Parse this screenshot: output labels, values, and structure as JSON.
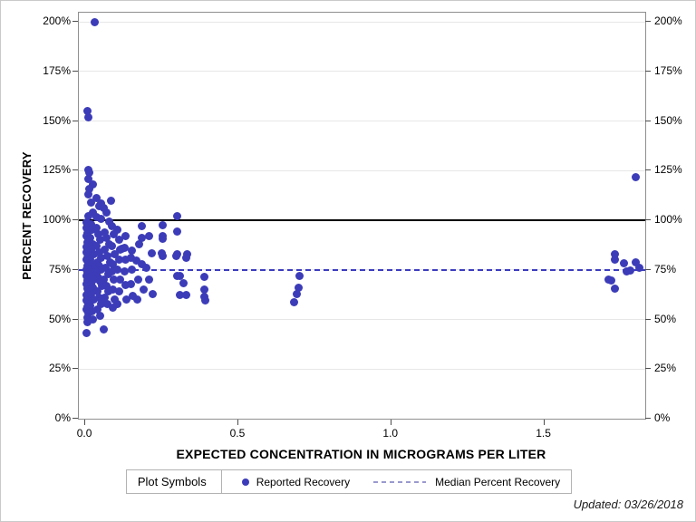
{
  "figure": {
    "updated_note": "Updated: 03/26/2018"
  },
  "colors": {
    "point": "#3c3cb9",
    "median_line": "#3c3cc0",
    "reference_line_100": "#000000",
    "gridline": "#e7e7e7",
    "plot_frame": "#8f8f8f",
    "legend_dash": "#9a9ace"
  },
  "chart_data": {
    "type": "scatter",
    "title": "",
    "xlabel": "EXPECTED CONCENTRATION IN MICROGRAMS PER LITER",
    "ylabel": "PERCENT RECOVERY",
    "xlim": [
      -0.021,
      1.83
    ],
    "ylim": [
      0,
      204.6
    ],
    "x_ticks": [
      0.0,
      0.5,
      1.0,
      1.5
    ],
    "x_tick_labels": [
      "0.0",
      "0.5",
      "1.0",
      "1.5"
    ],
    "y_ticks": [
      0,
      25,
      50,
      75,
      100,
      125,
      150,
      175,
      200
    ],
    "y_tick_labels": [
      "0%",
      "25%",
      "50%",
      "75%",
      "100%",
      "125%",
      "150%",
      "175%",
      "200%"
    ],
    "grid": "horizontal",
    "legend_position": "bottom",
    "reference_lines": [
      {
        "name": "100 percent recovery",
        "value": 100,
        "style": "solid",
        "color": "#000000"
      },
      {
        "name": "Median Percent Recovery",
        "value": 75,
        "style": "dashed",
        "color": "#3c3cc0"
      }
    ],
    "legend": {
      "title": "Plot Symbols",
      "entries": [
        {
          "label": "Reported Recovery",
          "marker": "dot",
          "color": "#3c3cb9"
        },
        {
          "label": "Median Percent Recovery",
          "marker": "dashed-line",
          "color": "#9a9ace"
        }
      ]
    },
    "series": [
      {
        "name": "Reported Recovery",
        "marker_color": "#3c3cb9",
        "points": [
          [
            0.03,
            200
          ],
          [
            0.006,
            155
          ],
          [
            0.009,
            152
          ],
          [
            0.009,
            125.5
          ],
          [
            0.012,
            124
          ],
          [
            0.009,
            121
          ],
          [
            0.024,
            118
          ],
          [
            0.012,
            116
          ],
          [
            0.009,
            113
          ],
          [
            0.038,
            111
          ],
          [
            0.083,
            110
          ],
          [
            0.018,
            109
          ],
          [
            0.053,
            108.5
          ],
          [
            0.047,
            107
          ],
          [
            0.059,
            106
          ],
          [
            0.024,
            104
          ],
          [
            0.068,
            104
          ],
          [
            0.009,
            102
          ],
          [
            0.038,
            101.5
          ],
          [
            0.053,
            100.5
          ],
          [
            0.077,
            99.5
          ],
          [
            0.004,
            99
          ],
          [
            0.008,
            97.5
          ],
          [
            0.005,
            96
          ],
          [
            0.01,
            95
          ],
          [
            0.006,
            93.5
          ],
          [
            0.004,
            92
          ],
          [
            0.009,
            90.5
          ],
          [
            0.006,
            89
          ],
          [
            0.011,
            88
          ],
          [
            0.004,
            86.5
          ],
          [
            0.008,
            85
          ],
          [
            0.005,
            84
          ],
          [
            0.01,
            82.5
          ],
          [
            0.006,
            81
          ],
          [
            0.004,
            80
          ],
          [
            0.009,
            78.5
          ],
          [
            0.006,
            77
          ],
          [
            0.011,
            76
          ],
          [
            0.004,
            75
          ],
          [
            0.008,
            73.5
          ],
          [
            0.005,
            72
          ],
          [
            0.01,
            71
          ],
          [
            0.006,
            69.5
          ],
          [
            0.004,
            68
          ],
          [
            0.009,
            67
          ],
          [
            0.006,
            65.5
          ],
          [
            0.011,
            64
          ],
          [
            0.004,
            62.5
          ],
          [
            0.008,
            61
          ],
          [
            0.005,
            59.5
          ],
          [
            0.01,
            58
          ],
          [
            0.006,
            56.5
          ],
          [
            0.004,
            55
          ],
          [
            0.009,
            53
          ],
          [
            0.006,
            51
          ],
          [
            0.008,
            48.5
          ],
          [
            0.018,
            98
          ],
          [
            0.022,
            95
          ],
          [
            0.016,
            91
          ],
          [
            0.025,
            88
          ],
          [
            0.019,
            85
          ],
          [
            0.028,
            83
          ],
          [
            0.016,
            80
          ],
          [
            0.023,
            78
          ],
          [
            0.027,
            76
          ],
          [
            0.017,
            74
          ],
          [
            0.021,
            72
          ],
          [
            0.029,
            70
          ],
          [
            0.018,
            68
          ],
          [
            0.024,
            66
          ],
          [
            0.02,
            63
          ],
          [
            0.027,
            60
          ],
          [
            0.016,
            57
          ],
          [
            0.022,
            54
          ],
          [
            0.025,
            50
          ],
          [
            0.038,
            96
          ],
          [
            0.044,
            93
          ],
          [
            0.05,
            90
          ],
          [
            0.036,
            87
          ],
          [
            0.047,
            84
          ],
          [
            0.053,
            81
          ],
          [
            0.04,
            79
          ],
          [
            0.045,
            77
          ],
          [
            0.051,
            75
          ],
          [
            0.037,
            73
          ],
          [
            0.043,
            71
          ],
          [
            0.049,
            69
          ],
          [
            0.054,
            67
          ],
          [
            0.039,
            64
          ],
          [
            0.046,
            61
          ],
          [
            0.052,
            58
          ],
          [
            0.041,
            55
          ],
          [
            0.048,
            52
          ],
          [
            0.062,
            94
          ],
          [
            0.07,
            91
          ],
          [
            0.078,
            88
          ],
          [
            0.064,
            85
          ],
          [
            0.072,
            82
          ],
          [
            0.08,
            79
          ],
          [
            0.066,
            76
          ],
          [
            0.074,
            73
          ],
          [
            0.06,
            70
          ],
          [
            0.068,
            67
          ],
          [
            0.076,
            64
          ],
          [
            0.063,
            61
          ],
          [
            0.071,
            58
          ],
          [
            0.086,
            97
          ],
          [
            0.092,
            93
          ],
          [
            0.088,
            87
          ],
          [
            0.095,
            83
          ],
          [
            0.09,
            78
          ],
          [
            0.086,
            74
          ],
          [
            0.093,
            70
          ],
          [
            0.089,
            65
          ],
          [
            0.096,
            60
          ],
          [
            0.091,
            56
          ],
          [
            0.105,
            95
          ],
          [
            0.11,
            90
          ],
          [
            0.115,
            85
          ],
          [
            0.121,
            85.5
          ],
          [
            0.11,
            80
          ],
          [
            0.105,
            75
          ],
          [
            0.115,
            70
          ],
          [
            0.11,
            64
          ],
          [
            0.105,
            58
          ],
          [
            0.133,
            92
          ],
          [
            0.13,
            86
          ],
          [
            0.133,
            80
          ],
          [
            0.13,
            74
          ],
          [
            0.133,
            67.5
          ],
          [
            0.135,
            60
          ],
          [
            0.148,
            81
          ],
          [
            0.151,
            84.5
          ],
          [
            0.151,
            75
          ],
          [
            0.15,
            68
          ],
          [
            0.155,
            62
          ],
          [
            0.166,
            79.5
          ],
          [
            0.172,
            70
          ],
          [
            0.177,
            88
          ],
          [
            0.17,
            60
          ],
          [
            0.186,
            97
          ],
          [
            0.186,
            91
          ],
          [
            0.186,
            78
          ],
          [
            0.19,
            65
          ],
          [
            0.2,
            76
          ],
          [
            0.21,
            92
          ],
          [
            0.216,
            83.5
          ],
          [
            0.21,
            70
          ],
          [
            0.22,
            63
          ],
          [
            0.254,
            97.5
          ],
          [
            0.254,
            92
          ],
          [
            0.254,
            90.5
          ],
          [
            0.25,
            83.5
          ],
          [
            0.254,
            82
          ],
          [
            0.3,
            102
          ],
          [
            0.3,
            94.5
          ],
          [
            0.3,
            83
          ],
          [
            0.334,
            83
          ],
          [
            0.3,
            72
          ],
          [
            0.31,
            72
          ],
          [
            0.31,
            62.5
          ],
          [
            0.32,
            68.5
          ],
          [
            0.33,
            81
          ],
          [
            0.33,
            62.5
          ],
          [
            0.296,
            82
          ],
          [
            0.388,
            71.5
          ],
          [
            0.39,
            65
          ],
          [
            0.39,
            61.5
          ],
          [
            0.392,
            59.5
          ],
          [
            0.7,
            72
          ],
          [
            0.698,
            66
          ],
          [
            0.69,
            63
          ],
          [
            0.682,
            58.5
          ],
          [
            1.73,
            83
          ],
          [
            1.732,
            80
          ],
          [
            1.76,
            78.5
          ],
          [
            1.8,
            79
          ],
          [
            1.81,
            76
          ],
          [
            1.78,
            74.5
          ],
          [
            1.77,
            74
          ],
          [
            1.71,
            70
          ],
          [
            1.72,
            69.5
          ],
          [
            1.73,
            65.5
          ],
          [
            1.8,
            121.5
          ],
          [
            0.003,
            43
          ],
          [
            0.06,
            45
          ]
        ]
      }
    ]
  }
}
